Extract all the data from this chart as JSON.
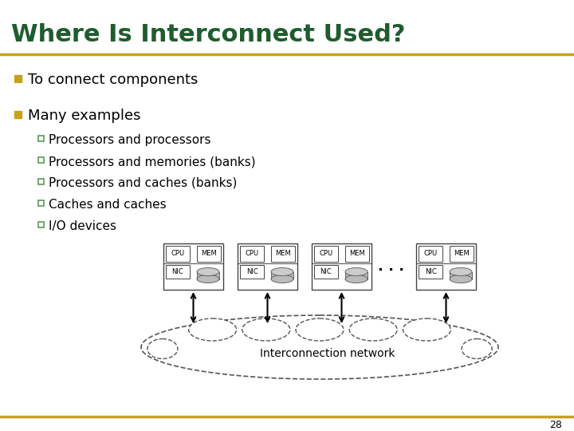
{
  "title": "Where Is Interconnect Used?",
  "title_color": "#1F5C2E",
  "title_fontsize": 22,
  "bullet1": "To connect components",
  "bullet2": "Many examples",
  "subbullets": [
    "Processors and processors",
    "Processors and memories (banks)",
    "Processors and caches (banks)",
    "Caches and caches",
    "I/O devices"
  ],
  "page_number": "28",
  "bg_color": "#FFFFFF",
  "bullet_color": "#C8A020",
  "sub_bullet_color": "#5A9A5A",
  "text_color": "#000000",
  "line_color": "#C8A020"
}
